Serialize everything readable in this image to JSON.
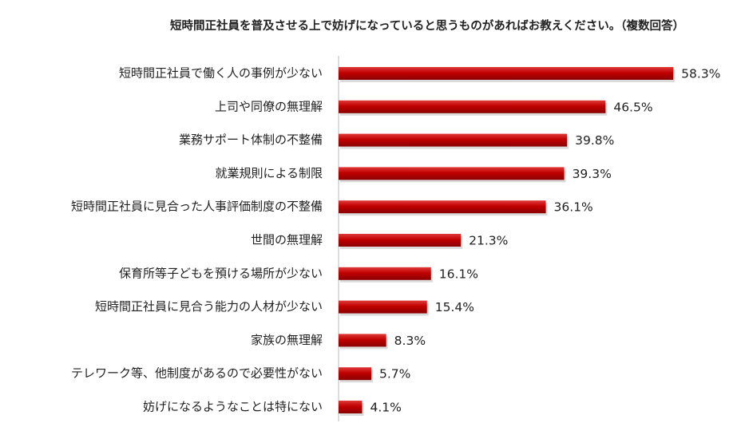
{
  "chart_data": {
    "type": "bar",
    "orientation": "horizontal",
    "title": "短時間正社員を普及させる上で妨げになっていると思うものがあればお教えください。（複数回答）",
    "categories": [
      "短時間正社員で働く人の事例が少ない",
      "上司や同僚の無理解",
      "業務サポート体制の不整備",
      "就業規則による制限",
      "短時間正社員に見合った人事評価制度の不整備",
      "世間の無理解",
      "保育所等子どもを預ける場所が少ない",
      "短時間正社員に見合う能力の人材が少ない",
      "家族の無理解",
      "テレワーク等、他制度があるので必要性がない",
      "妨げになるようなことは特にない"
    ],
    "values": [
      58.3,
      46.5,
      39.8,
      39.3,
      36.1,
      21.3,
      16.1,
      15.4,
      8.3,
      5.7,
      4.1
    ],
    "value_labels": [
      "58.3%",
      "46.5%",
      "39.8%",
      "39.3%",
      "36.1%",
      "21.3%",
      "16.1%",
      "15.4%",
      "8.3%",
      "5.7%",
      "4.1%"
    ],
    "color": "#c00000"
  }
}
